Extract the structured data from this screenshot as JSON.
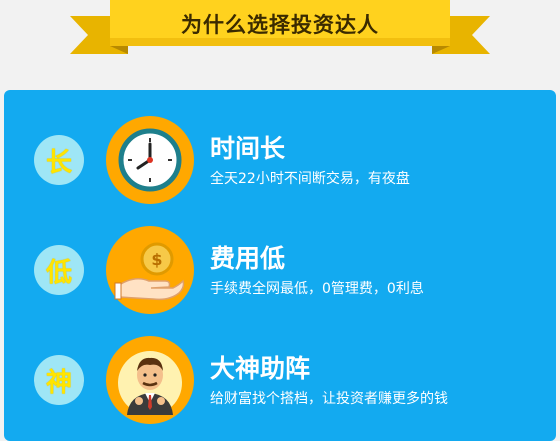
{
  "header": {
    "title": "为什么选择投资达人"
  },
  "features": [
    {
      "badge": "长",
      "title": "时间长",
      "desc": "全天22小时不间断交易，有夜盘",
      "icon": "clock-icon"
    },
    {
      "badge": "低",
      "title": "费用低",
      "desc": "手续费全网最低，0管理费，0利息",
      "icon": "coin-hand-icon"
    },
    {
      "badge": "神",
      "title": "大神助阵",
      "desc": "给财富找个搭档，让投资者赚更多的钱",
      "icon": "businessman-icon"
    }
  ],
  "colors": {
    "panel": "#13aaf0",
    "icon_circle": "#ffa800",
    "ribbon": "#ffd21e",
    "badge": "#9ee6f6",
    "badge_text": "#ffe500"
  }
}
